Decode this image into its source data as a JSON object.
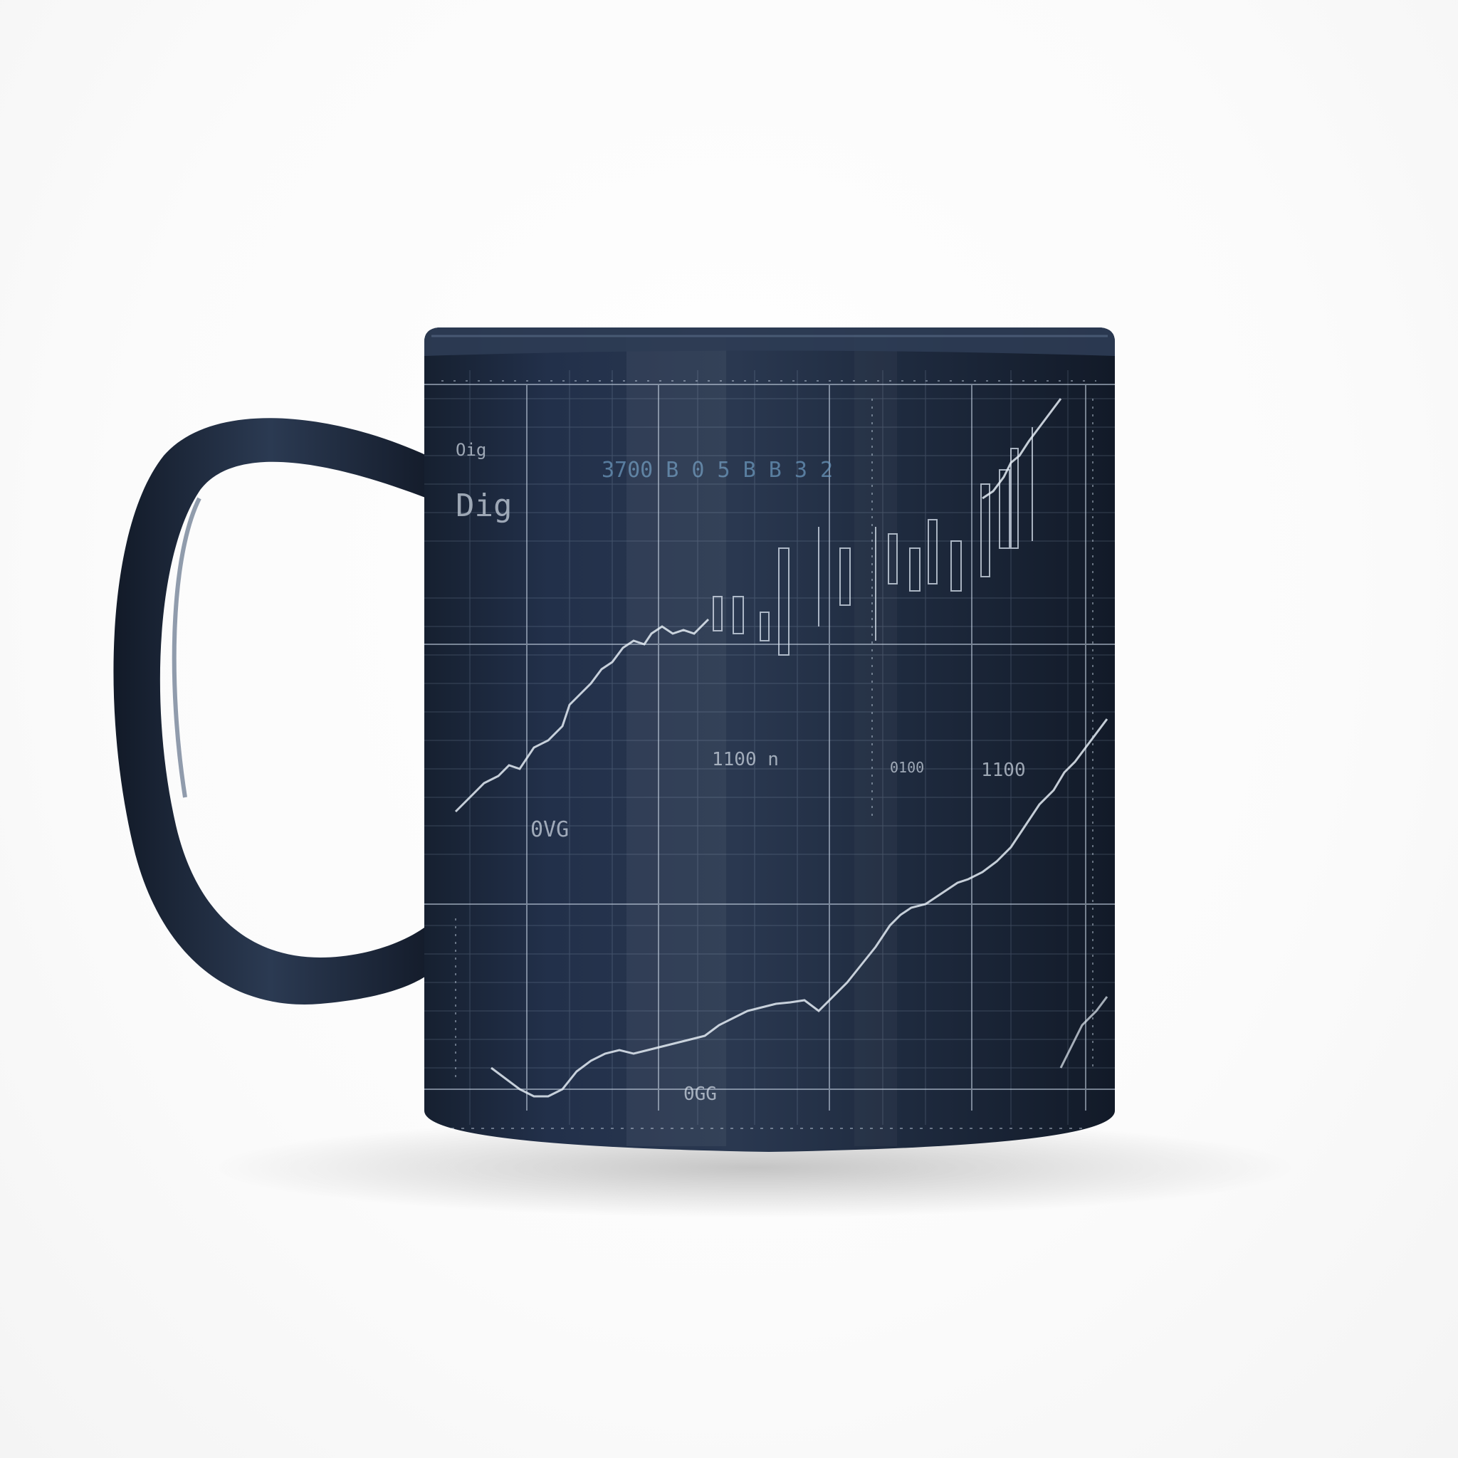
{
  "scene": {
    "subject": "mug",
    "colors": {
      "background": "#ffffff",
      "mug_body": "#1c2636",
      "mug_highlight": "#3a4a60",
      "chart_lines": "#c9d6e6",
      "accent_text": "#6e9cc2"
    }
  },
  "mug_print": {
    "header_text": "3700 B 0 5 B B 3 2",
    "labels": [
      {
        "id": "label-top-left",
        "text": "Oig"
      },
      {
        "id": "label-left-big",
        "text": "Dig"
      },
      {
        "id": "label-mid-1",
        "text": "1100 n"
      },
      {
        "id": "label-mid-2",
        "text": "1100"
      },
      {
        "id": "label-mid-3",
        "text": "0100"
      },
      {
        "id": "label-lower-left",
        "text": "0VG"
      },
      {
        "id": "label-bottom",
        "text": "0GG"
      }
    ]
  }
}
